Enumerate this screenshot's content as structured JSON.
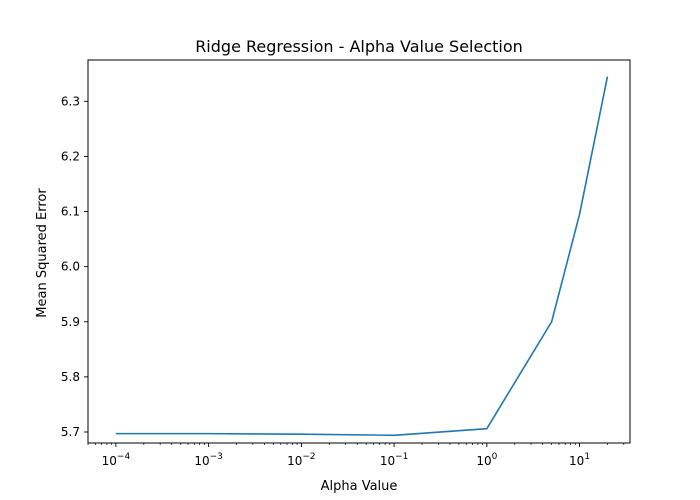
{
  "chart_data": {
    "type": "line",
    "title": "Ridge Regression - Alpha Value Selection",
    "xlabel": "Alpha Value",
    "ylabel": "Mean Squared Error",
    "xscale": "log",
    "xlim": [
      5e-05,
      35
    ],
    "ylim": [
      5.68,
      6.375
    ],
    "grid": false,
    "legend": "none",
    "series": [
      {
        "color": "#1f77b4",
        "x": [
          0.0001,
          0.001,
          0.01,
          0.1,
          1,
          5,
          10,
          20
        ],
        "y": [
          5.697,
          5.697,
          5.696,
          5.694,
          5.706,
          5.9,
          6.095,
          6.345
        ]
      }
    ],
    "xticks": [
      {
        "value": 0.0001,
        "base": "10",
        "exp": "−4"
      },
      {
        "value": 0.001,
        "base": "10",
        "exp": "−3"
      },
      {
        "value": 0.01,
        "base": "10",
        "exp": "−2"
      },
      {
        "value": 0.1,
        "base": "10",
        "exp": "−1"
      },
      {
        "value": 1,
        "base": "10",
        "exp": "0"
      },
      {
        "value": 10,
        "base": "10",
        "exp": "1"
      }
    ],
    "yticks": [
      {
        "value": 5.7,
        "label": "5.7"
      },
      {
        "value": 5.8,
        "label": "5.8"
      },
      {
        "value": 5.9,
        "label": "5.9"
      },
      {
        "value": 6.0,
        "label": "6.0"
      },
      {
        "value": 6.1,
        "label": "6.1"
      },
      {
        "value": 6.2,
        "label": "6.2"
      },
      {
        "value": 6.3,
        "label": "6.3"
      }
    ]
  }
}
